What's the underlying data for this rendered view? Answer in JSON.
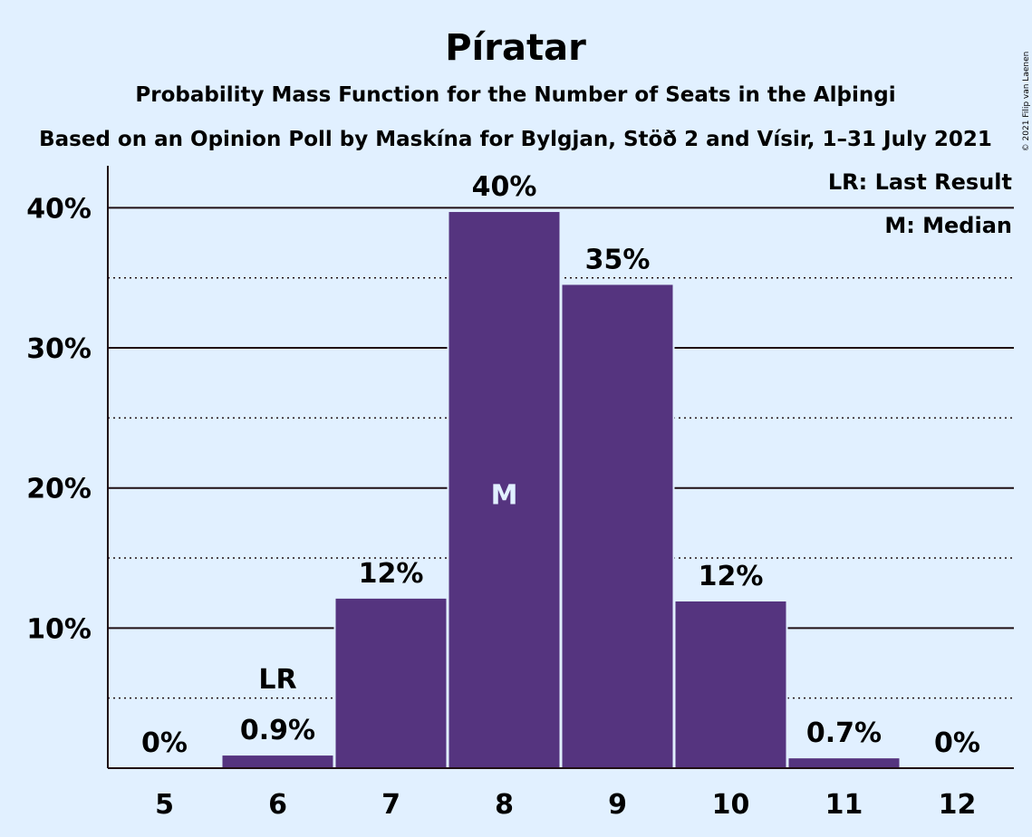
{
  "chart_data": {
    "type": "bar",
    "title": "Píratar",
    "subtitle": "Probability Mass Function for the Number of Seats in the Alþingi",
    "subtitle2": "Based on an Opinion Poll by Maskína for Bylgjan, Stöð 2 and Vísir, 1–31 July 2021",
    "categories": [
      "5",
      "6",
      "7",
      "8",
      "9",
      "10",
      "11",
      "12"
    ],
    "values": [
      0,
      0.9,
      12.1,
      39.7,
      34.5,
      11.9,
      0.7,
      0
    ],
    "data_labels": [
      "0%",
      "0.9%",
      "12%",
      "40%",
      "35%",
      "12%",
      "0.7%",
      "0%"
    ],
    "ylim": [
      0,
      43
    ],
    "yticks": [
      {
        "value": 10,
        "label": "10%"
      },
      {
        "value": 20,
        "label": "20%"
      },
      {
        "value": 30,
        "label": "30%"
      },
      {
        "value": 40,
        "label": "40%"
      }
    ],
    "minor_gridlines": [
      5,
      15,
      25,
      35
    ],
    "last_result_index": 1,
    "last_result_marker": "LR",
    "median_index": 3,
    "median_marker": "M",
    "legend": [
      "LR: Last Result",
      "M: Median"
    ],
    "legend_position": "top-right",
    "bar_color": "#55347f",
    "copyright": "© 2021 Filip van Laenen"
  }
}
